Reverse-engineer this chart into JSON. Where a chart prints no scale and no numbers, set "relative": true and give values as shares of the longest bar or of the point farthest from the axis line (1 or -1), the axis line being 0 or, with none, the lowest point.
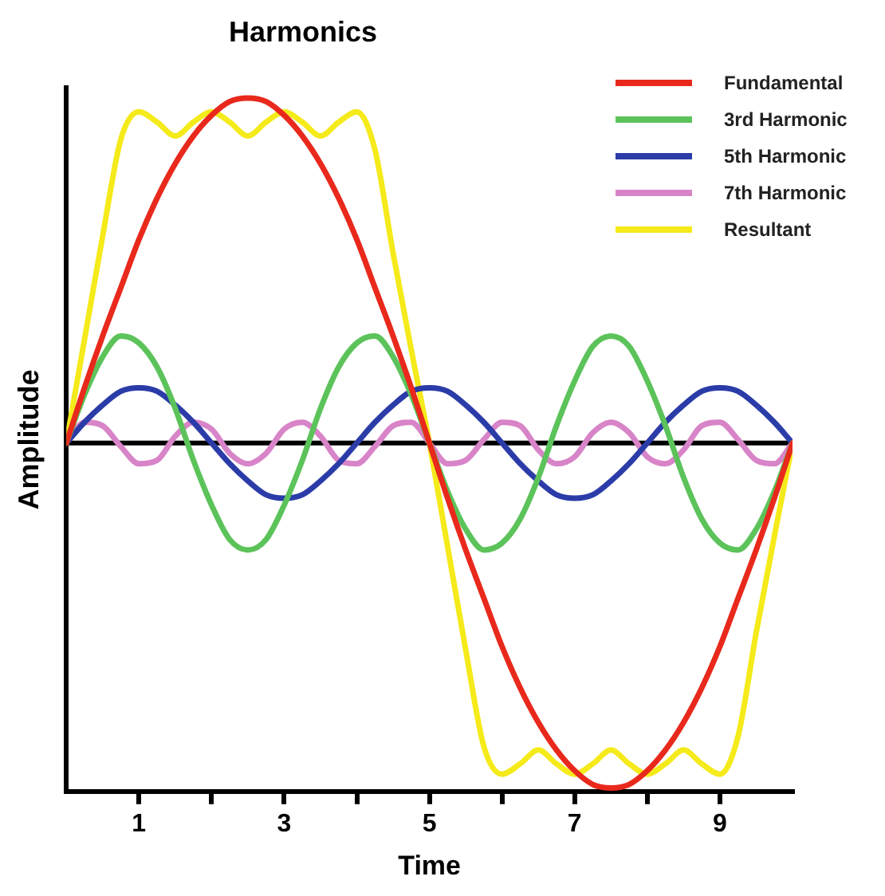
{
  "chart_data": {
    "type": "line",
    "title": "Harmonics",
    "xlabel": "Time",
    "ylabel": "Amplitude",
    "relative": true,
    "legend": "top right",
    "marker": "none",
    "line_style": "solid",
    "x": [
      0,
      0.25,
      0.5,
      0.75,
      1,
      1.25,
      1.5,
      1.75,
      2,
      2.25,
      2.5,
      2.75,
      3,
      3.25,
      3.5,
      3.75,
      4,
      4.25,
      4.5,
      4.75,
      5,
      5.25,
      5.5,
      5.75,
      6,
      6.25,
      6.5,
      6.75,
      7,
      7.25,
      7.5,
      7.75,
      8,
      8.25,
      8.5,
      8.75,
      9,
      9.25,
      9.5,
      9.75,
      10
    ],
    "xlim": [
      0,
      10
    ],
    "xticks": [
      1,
      {
        "value": 2,
        "label": null
      },
      3,
      {
        "value": 4,
        "label": null
      },
      5,
      {
        "value": 6,
        "label": null
      },
      7,
      {
        "value": 8,
        "label": null
      },
      9
    ],
    "series": [
      {
        "name": "Fundamental",
        "color": "#e8291c",
        "values": [
          0,
          0.16,
          0.31,
          0.45,
          0.59,
          0.71,
          0.81,
          0.89,
          0.95,
          0.99,
          1,
          0.99,
          0.95,
          0.89,
          0.81,
          0.71,
          0.59,
          0.45,
          0.31,
          0.16,
          0,
          -0.16,
          -0.31,
          -0.45,
          -0.59,
          -0.71,
          -0.81,
          -0.89,
          -0.95,
          -0.99,
          -1,
          -0.99,
          -0.95,
          -0.89,
          -0.81,
          -0.71,
          -0.59,
          -0.45,
          -0.31,
          -0.16,
          0
        ]
      },
      {
        "name": "3rd Harmonic",
        "color": "#5cc35a",
        "values": [
          0,
          0.14,
          0.25,
          0.31,
          0.29,
          0.22,
          0.1,
          -0.05,
          -0.18,
          -0.28,
          -0.31,
          -0.28,
          -0.18,
          -0.05,
          0.1,
          0.22,
          0.29,
          0.31,
          0.25,
          0.14,
          0,
          -0.14,
          -0.25,
          -0.31,
          -0.29,
          -0.22,
          -0.1,
          0.05,
          0.18,
          0.28,
          0.31,
          0.28,
          0.18,
          0.05,
          -0.1,
          -0.22,
          -0.29,
          -0.31,
          -0.25,
          -0.14,
          0
        ]
      },
      {
        "name": "5th Harmonic",
        "color": "#2b3ca8",
        "values": [
          0,
          0.06,
          0.11,
          0.15,
          0.16,
          0.15,
          0.11,
          0.06,
          0,
          -0.06,
          -0.11,
          -0.15,
          -0.16,
          -0.15,
          -0.11,
          -0.06,
          0,
          0.06,
          0.11,
          0.15,
          0.16,
          0.15,
          0.11,
          0.06,
          0,
          -0.06,
          -0.11,
          -0.15,
          -0.16,
          -0.15,
          -0.11,
          -0.06,
          0,
          0.06,
          0.11,
          0.15,
          0.16,
          0.15,
          0.11,
          0.06,
          0
        ]
      },
      {
        "name": "7th Harmonic",
        "color": "#d884c8",
        "values": [
          0,
          0.06,
          0.05,
          -0.01,
          -0.06,
          -0.05,
          0.02,
          0.06,
          0.04,
          -0.03,
          -0.06,
          -0.03,
          0.04,
          0.06,
          0.02,
          -0.05,
          -0.06,
          -0.01,
          0.05,
          0.06,
          0,
          -0.06,
          -0.05,
          0.01,
          0.06,
          0.05,
          -0.02,
          -0.06,
          -0.04,
          0.03,
          0.06,
          0.03,
          -0.04,
          -0.06,
          -0.02,
          0.05,
          0.06,
          0.01,
          -0.05,
          -0.06,
          0
        ]
      },
      {
        "name": "Resultant",
        "color": "#f5ea1a",
        "values": [
          0,
          0.3,
          0.6,
          0.88,
          0.96,
          0.93,
          0.89,
          0.93,
          0.96,
          0.93,
          0.89,
          0.93,
          0.96,
          0.93,
          0.89,
          0.93,
          0.96,
          0.85,
          0.55,
          0.27,
          0,
          -0.3,
          -0.6,
          -0.88,
          -0.96,
          -0.93,
          -0.89,
          -0.93,
          -0.96,
          -0.93,
          -0.89,
          -0.93,
          -0.96,
          -0.93,
          -0.89,
          -0.93,
          -0.96,
          -0.85,
          -0.55,
          -0.27,
          0
        ]
      }
    ]
  }
}
